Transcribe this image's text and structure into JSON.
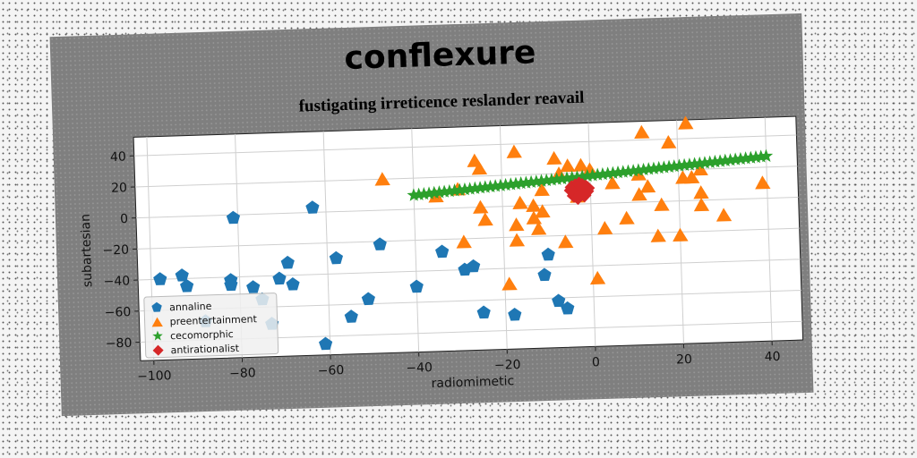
{
  "chart_data": {
    "type": "scatter",
    "title": "conflexure",
    "subtitle": "fustigating irreticence reslander reavail",
    "xlabel": "radiomimetic",
    "ylabel": "subartesian",
    "xlim": [
      -103,
      47
    ],
    "ylim": [
      -92,
      52
    ],
    "xticks": [
      -100,
      -80,
      -60,
      -40,
      -20,
      0,
      20,
      40
    ],
    "yticks": [
      -80,
      -60,
      -40,
      -20,
      0,
      20,
      40
    ],
    "xtick_labels": [
      "−100",
      "−80",
      "−60",
      "−40",
      "−20",
      "0",
      "20",
      "40"
    ],
    "ytick_labels": [
      "−80",
      "−60",
      "−40",
      "−20",
      "0",
      "20",
      "40"
    ],
    "grid": true,
    "legend_position": "lower-left",
    "series": [
      {
        "name": "annaline",
        "marker": "pentagon",
        "color": "#1f77b4",
        "points": [
          [
            -98,
            -40
          ],
          [
            -93,
            -38
          ],
          [
            -92,
            -45
          ],
          [
            -88,
            -68
          ],
          [
            -82,
            -42
          ],
          [
            -82,
            -45
          ],
          [
            -81,
            -2
          ],
          [
            -77,
            -47
          ],
          [
            -75,
            -55
          ],
          [
            -73,
            -71
          ],
          [
            -71,
            -42
          ],
          [
            -69,
            -32
          ],
          [
            -68,
            -46
          ],
          [
            -63,
            3
          ],
          [
            -61,
            -85
          ],
          [
            -58,
            -30
          ],
          [
            -55,
            -68
          ],
          [
            -51,
            -57
          ],
          [
            -48,
            -22
          ],
          [
            -40,
            -50
          ],
          [
            -34,
            -28
          ],
          [
            -29,
            -40
          ],
          [
            -27,
            -38
          ],
          [
            -25,
            -68
          ],
          [
            -18,
            -70
          ],
          [
            -10,
            -32
          ],
          [
            -11,
            -45
          ],
          [
            -8,
            -62
          ],
          [
            -6,
            -67
          ]
        ]
      },
      {
        "name": "preentertainment",
        "marker": "triangle",
        "color": "#ff7f0e",
        "points": [
          [
            -47,
            20
          ],
          [
            -35,
            8
          ],
          [
            -30,
            12
          ],
          [
            -29,
            -22
          ],
          [
            -26,
            30
          ],
          [
            -25,
            25
          ],
          [
            -25,
            0
          ],
          [
            -24,
            -8
          ],
          [
            -19,
            -50
          ],
          [
            -17,
            35
          ],
          [
            -17,
            -12
          ],
          [
            -17,
            -22
          ],
          [
            -16,
            2
          ],
          [
            -13,
            0
          ],
          [
            -13,
            -8
          ],
          [
            -12,
            -15
          ],
          [
            -11,
            -4
          ],
          [
            -11,
            10
          ],
          [
            -8,
            30
          ],
          [
            -7,
            20
          ],
          [
            -6,
            -24
          ],
          [
            -5,
            25
          ],
          [
            -3,
            5
          ],
          [
            -2,
            25
          ],
          [
            0,
            22
          ],
          [
            1,
            -48
          ],
          [
            3,
            -16
          ],
          [
            5,
            13
          ],
          [
            8,
            -10
          ],
          [
            11,
            18
          ],
          [
            11,
            5
          ],
          [
            12,
            45
          ],
          [
            13,
            10
          ],
          [
            15,
            -22
          ],
          [
            16,
            -2
          ],
          [
            18,
            38
          ],
          [
            20,
            -22
          ],
          [
            21,
            15
          ],
          [
            22,
            50
          ],
          [
            23,
            15
          ],
          [
            25,
            5
          ],
          [
            25,
            20
          ],
          [
            25,
            -3
          ],
          [
            30,
            -10
          ],
          [
            39,
            10
          ]
        ]
      },
      {
        "name": "cecomorphic",
        "marker": "star",
        "color": "#2ca02c",
        "line": {
          "x_start": -40,
          "x_end": 40,
          "y_start": 9,
          "y_end": 27,
          "count": 70
        }
      },
      {
        "name": "antirationalist",
        "marker": "diamond",
        "color": "#d62728",
        "points": [
          [
            -4,
            8
          ],
          [
            -3.6,
            9
          ],
          [
            -3.2,
            7
          ],
          [
            -2.8,
            10
          ],
          [
            -2.4,
            8
          ],
          [
            -2.0,
            9
          ],
          [
            -1.6,
            7
          ],
          [
            -1.2,
            10
          ],
          [
            -0.8,
            8
          ],
          [
            -4.2,
            11
          ],
          [
            -3.4,
            12
          ],
          [
            -2.6,
            11.5
          ],
          [
            -1.8,
            12
          ],
          [
            -1.0,
            11
          ],
          [
            -3.8,
            5.5
          ],
          [
            -3.0,
            5
          ],
          [
            -2.2,
            6
          ],
          [
            -1.4,
            5.5
          ],
          [
            -4.4,
            9
          ],
          [
            -0.6,
            10
          ],
          [
            -2.5,
            13
          ],
          [
            -2.9,
            4
          ]
        ]
      }
    ]
  }
}
